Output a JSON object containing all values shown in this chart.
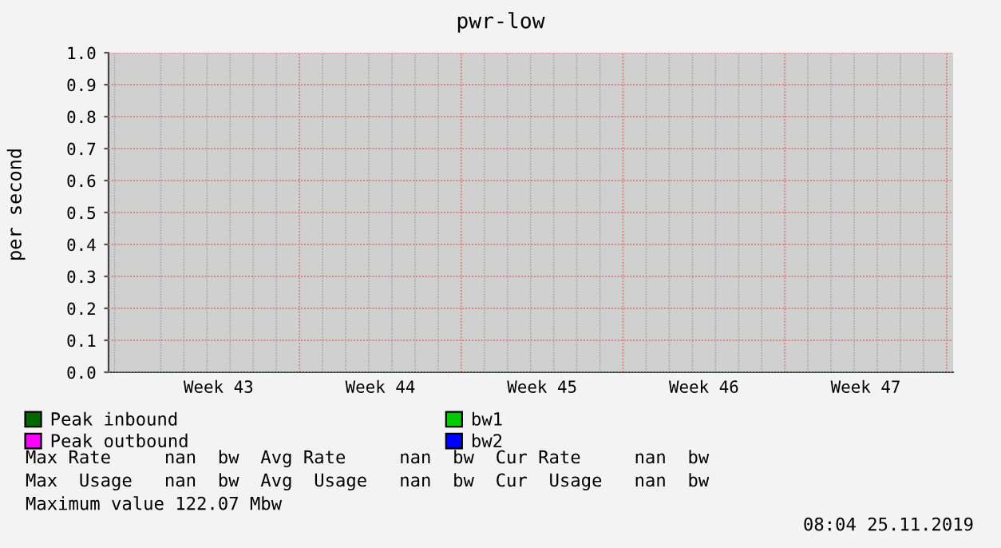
{
  "chart_data": {
    "type": "line",
    "title": "pwr-low",
    "ylabel": "per second",
    "categories": [
      "Week 43",
      "Week 44",
      "Week 45",
      "Week 46",
      "Week 47"
    ],
    "series": [
      {
        "name": "Peak inbound",
        "color": "#006600",
        "values": [
          null,
          null,
          null,
          null,
          null
        ]
      },
      {
        "name": "Peak outbound",
        "color": "#ff00ff",
        "values": [
          null,
          null,
          null,
          null,
          null
        ]
      },
      {
        "name": "bw1",
        "color": "#00cc00",
        "values": [
          null,
          null,
          null,
          null,
          null
        ]
      },
      {
        "name": "bw2",
        "color": "#0000ff",
        "values": [
          null,
          null,
          null,
          null,
          null
        ]
      }
    ],
    "ylim": [
      0.0,
      1.0
    ],
    "yticks": [
      {
        "value": 0,
        "label": "0.0"
      },
      0.1,
      0.2,
      0.3,
      0.4,
      0.5,
      0.6,
      0.7,
      0.8,
      0.9,
      {
        "value": 1,
        "label": "1.0"
      }
    ],
    "grid": true,
    "legend": "bottom",
    "annotations": [
      "Max Rate     nan  bw  Avg Rate     nan  bw  Cur Rate     nan  bw",
      "Max  Usage   nan  bw  Avg  Usage   nan  bw  Cur  Usage   nan  bw",
      "Maximum value 122.07 Mbw",
      "08:04 25.11.2019"
    ]
  }
}
